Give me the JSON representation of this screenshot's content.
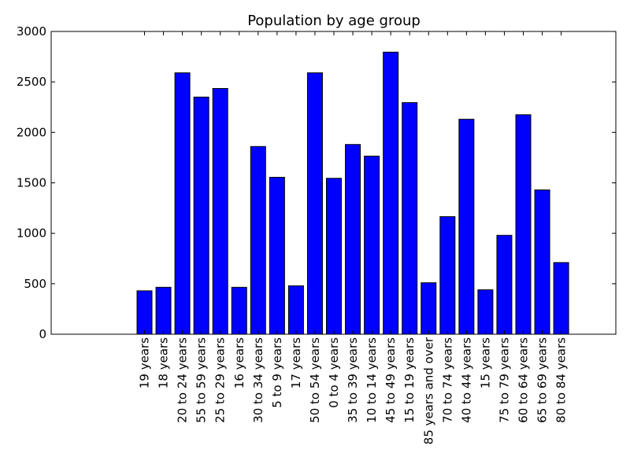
{
  "chart_data": {
    "type": "bar",
    "title": "Population by age group",
    "xlabel": "",
    "ylabel": "",
    "ylim": [
      0,
      3000
    ],
    "yticks": [
      0,
      500,
      1000,
      1500,
      2000,
      2500,
      3000
    ],
    "grid": false,
    "bar_color": "#0000ff",
    "edge_color": "#000000",
    "categories": [
      "19 years",
      "18 years",
      "20 to 24 years",
      "55 to 59 years",
      "25 to 29 years",
      "16 years",
      "30 to 34 years",
      "5 to 9 years",
      "17 years",
      "50 to 54 years",
      "0 to 4 years",
      "35 to 39 years",
      "10 to 14 years",
      "45 to 49 years",
      "15 to 19 years",
      "85 years and over",
      "70 to 74 years",
      "40 to 44 years",
      "15 years",
      "75 to 79 years",
      "60 to 64 years",
      "65 to 69 years",
      "80 to 84 years"
    ],
    "values": [
      430,
      465,
      2590,
      2350,
      2435,
      465,
      1860,
      1555,
      480,
      2590,
      1545,
      1880,
      1765,
      2795,
      2295,
      510,
      1165,
      2130,
      440,
      980,
      2175,
      1430,
      710
    ]
  }
}
